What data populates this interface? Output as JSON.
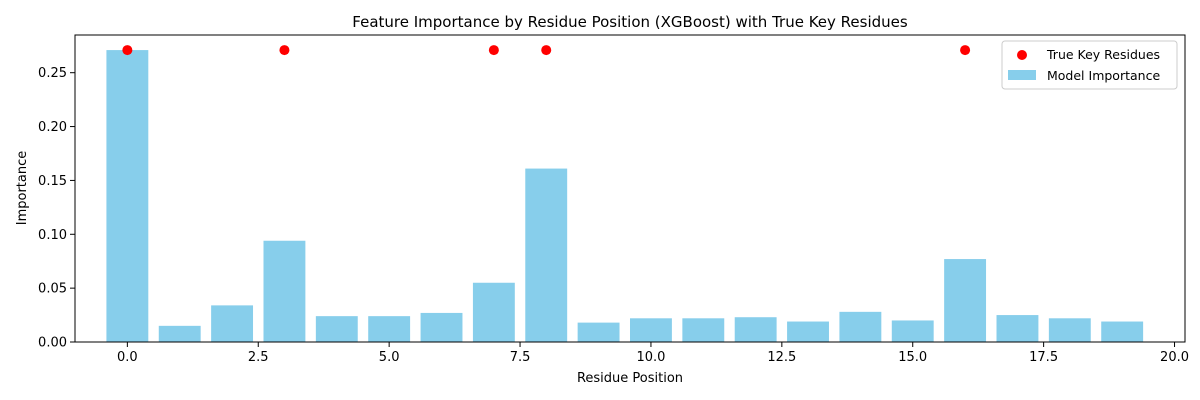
{
  "chart_data": {
    "type": "bar",
    "title": "Feature Importance by Residue Position (XGBoost) with True Key Residues",
    "xlabel": "Residue Position",
    "ylabel": "Importance",
    "xlim": [
      -1.0,
      20.2
    ],
    "ylim": [
      0,
      0.285
    ],
    "x_ticks": [
      0.0,
      2.5,
      5.0,
      7.5,
      10.0,
      12.5,
      15.0,
      17.5,
      20.0
    ],
    "x_tick_labels": [
      "0.0",
      "2.5",
      "5.0",
      "7.5",
      "10.0",
      "12.5",
      "15.0",
      "17.5",
      "20.0"
    ],
    "y_ticks": [
      0,
      0.05,
      0.1,
      0.15,
      0.2,
      0.25
    ],
    "y_tick_labels": [
      "0.00",
      "0.05",
      "0.10",
      "0.15",
      "0.20",
      "0.25"
    ],
    "grid": false,
    "legend_position": "top-right",
    "series": [
      {
        "name": "Model Importance",
        "type": "bar",
        "color": "#87ceeb",
        "x": [
          0,
          1,
          2,
          3,
          4,
          5,
          6,
          7,
          8,
          9,
          10,
          11,
          12,
          13,
          14,
          15,
          16,
          17,
          18,
          19
        ],
        "values": [
          0.271,
          0.015,
          0.034,
          0.094,
          0.024,
          0.024,
          0.027,
          0.055,
          0.161,
          0.018,
          0.022,
          0.022,
          0.023,
          0.019,
          0.028,
          0.02,
          0.077,
          0.025,
          0.022,
          0.019
        ]
      },
      {
        "name": "True Key Residues",
        "type": "scatter",
        "color": "#ff0000",
        "x": [
          0,
          3,
          7,
          8,
          16
        ],
        "values": [
          0.271,
          0.271,
          0.271,
          0.271,
          0.271
        ]
      }
    ]
  }
}
